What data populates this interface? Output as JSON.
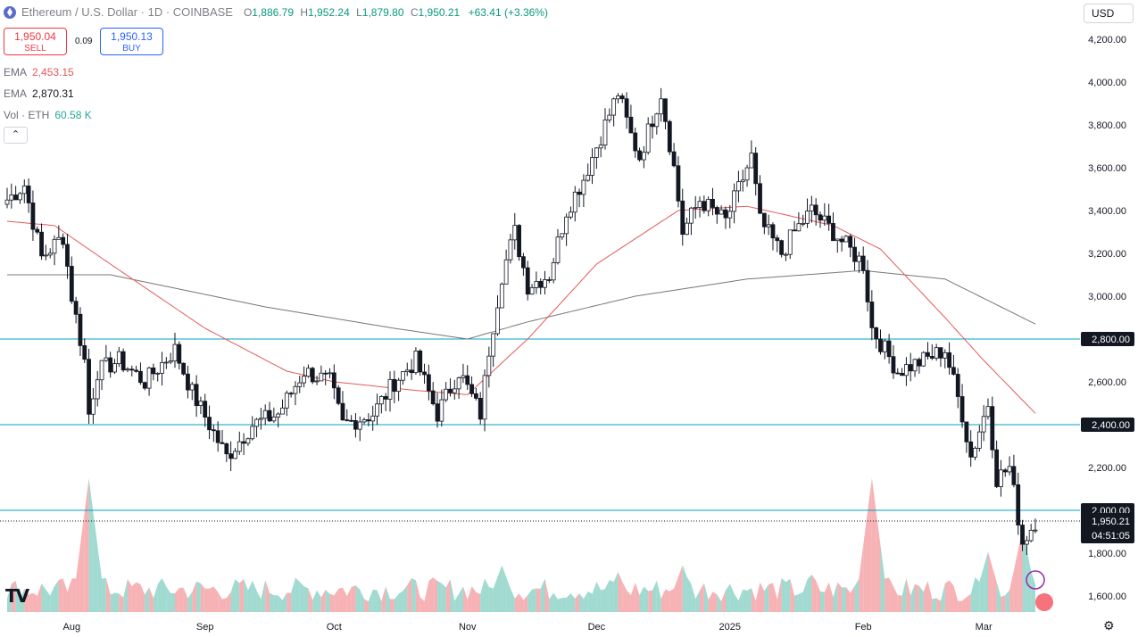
{
  "header": {
    "symbol": "Ethereum / U.S. Dollar · 1D · COINBASE",
    "o_label": "O",
    "o_value": "1,886.79",
    "h_label": "H",
    "h_value": "1,952.24",
    "l_label": "L",
    "l_value": "1,879.80",
    "c_label": "C",
    "c_value": "1,950.21",
    "change": "+63.41 (+3.36%)"
  },
  "trade": {
    "sell_price": "1,950.04",
    "sell_label": "SELL",
    "spread": "0.09",
    "buy_price": "1,950.13",
    "buy_label": "BUY"
  },
  "indicators": [
    {
      "name": "EMA",
      "value": "2,453.15",
      "color": "#e35a5a"
    },
    {
      "name": "EMA",
      "value": "2,870.31",
      "color": "#555555"
    },
    {
      "name": "Vol · ETH",
      "value": "60.58 K",
      "color": "#26a69a"
    }
  ],
  "collapse_icon": "chevron-up-icon",
  "collapse_glyph": "⌃",
  "currency": "USD",
  "tv_logo": "TV",
  "settings_icon": "gear-icon",
  "colors": {
    "up": "#089981",
    "down": "#f23645",
    "ema_fast": "#e35a5a",
    "ema_slow": "#777777",
    "hline": "#00a3c4",
    "vol_up": "#8fd3c8",
    "vol_down": "#f5a4a8",
    "last_label_bg": "#131722",
    "hline_label_bg": "#131722"
  },
  "chart_data": {
    "type": "candlestick",
    "symbol": "ETHUSD",
    "interval": "1D",
    "y_ticks": [
      "4,200.00",
      "4,000.00",
      "3,800.00",
      "3,600.00",
      "3,400.00",
      "3,200.00",
      "3,000.00",
      "2,800.00",
      "2,600.00",
      "2,400.00",
      "2,200.00",
      "2,000.00",
      "1,800.00",
      "1,600.00"
    ],
    "y_tick_values": [
      4200,
      4000,
      3800,
      3600,
      3400,
      3200,
      3000,
      2800,
      2600,
      2400,
      2200,
      2000,
      1800,
      1600
    ],
    "ylim": [
      1520,
      4285
    ],
    "x_ticks": [
      "Aug",
      "Sep",
      "Oct",
      "Nov",
      "Dec",
      "2025",
      "Feb",
      "Mar"
    ],
    "x_tick_dates": [
      "2024-08-01",
      "2024-09-01",
      "2024-10-01",
      "2024-11-01",
      "2024-12-01",
      "2025-01-01",
      "2025-02-01",
      "2025-03-01"
    ],
    "date_range": [
      "2024-07-17",
      "2025-03-13"
    ],
    "horizontal_lines": [
      {
        "value": 2800,
        "label": "2,800.00"
      },
      {
        "value": 2400,
        "label": "2,400.00"
      },
      {
        "value": 2000,
        "label": "2,000.00"
      }
    ],
    "last_price": {
      "value": 1950.21,
      "label": "1,950.21",
      "countdown": "04:51:05"
    },
    "close_anchors": [
      [
        "2024-07-17",
        3450
      ],
      [
        "2024-07-21",
        3520
      ],
      [
        "2024-07-25",
        3180
      ],
      [
        "2024-07-30",
        3280
      ],
      [
        "2024-08-01",
        3000
      ],
      [
        "2024-08-04",
        2700
      ],
      [
        "2024-08-05",
        2450
      ],
      [
        "2024-08-07",
        2650
      ],
      [
        "2024-08-12",
        2700
      ],
      [
        "2024-08-18",
        2600
      ],
      [
        "2024-08-25",
        2750
      ],
      [
        "2024-08-29",
        2550
      ],
      [
        "2024-09-06",
        2250
      ],
      [
        "2024-09-12",
        2400
      ],
      [
        "2024-09-18",
        2450
      ],
      [
        "2024-09-24",
        2650
      ],
      [
        "2024-09-30",
        2600
      ],
      [
        "2024-10-03",
        2400
      ],
      [
        "2024-10-10",
        2450
      ],
      [
        "2024-10-15",
        2600
      ],
      [
        "2024-10-20",
        2700
      ],
      [
        "2024-10-25",
        2450
      ],
      [
        "2024-10-30",
        2650
      ],
      [
        "2024-11-04",
        2450
      ],
      [
        "2024-11-06",
        2750
      ],
      [
        "2024-11-09",
        3100
      ],
      [
        "2024-11-12",
        3300
      ],
      [
        "2024-11-15",
        3050
      ],
      [
        "2024-11-20",
        3100
      ],
      [
        "2024-11-24",
        3400
      ],
      [
        "2024-11-28",
        3550
      ],
      [
        "2024-12-01",
        3700
      ],
      [
        "2024-12-06",
        3950
      ],
      [
        "2024-12-09",
        3750
      ],
      [
        "2024-12-11",
        3650
      ],
      [
        "2024-12-16",
        3950
      ],
      [
        "2024-12-19",
        3600
      ],
      [
        "2024-12-21",
        3300
      ],
      [
        "2024-12-25",
        3450
      ],
      [
        "2024-12-31",
        3350
      ],
      [
        "2025-01-06",
        3650
      ],
      [
        "2025-01-08",
        3350
      ],
      [
        "2025-01-13",
        3200
      ],
      [
        "2025-01-16",
        3300
      ],
      [
        "2025-01-20",
        3400
      ],
      [
        "2025-01-25",
        3300
      ],
      [
        "2025-02-01",
        3150
      ],
      [
        "2025-02-03",
        2850
      ],
      [
        "2025-02-09",
        2650
      ],
      [
        "2025-02-15",
        2700
      ],
      [
        "2025-02-20",
        2750
      ],
      [
        "2025-02-24",
        2450
      ],
      [
        "2025-02-26",
        2250
      ],
      [
        "2025-03-02",
        2500
      ],
      [
        "2025-03-04",
        2150
      ],
      [
        "2025-03-07",
        2200
      ],
      [
        "2025-03-10",
        1850
      ],
      [
        "2025-03-13",
        1950
      ]
    ],
    "ema_fast_anchors": [
      [
        "2024-07-17",
        3350
      ],
      [
        "2024-07-28",
        3330
      ],
      [
        "2024-08-10",
        3150
      ],
      [
        "2024-09-01",
        2850
      ],
      [
        "2024-09-20",
        2650
      ],
      [
        "2024-10-01",
        2600
      ],
      [
        "2024-10-20",
        2560
      ],
      [
        "2024-11-01",
        2540
      ],
      [
        "2024-11-15",
        2800
      ],
      [
        "2024-12-01",
        3150
      ],
      [
        "2024-12-20",
        3400
      ],
      [
        "2025-01-05",
        3420
      ],
      [
        "2025-01-25",
        3330
      ],
      [
        "2025-02-05",
        3220
      ],
      [
        "2025-02-20",
        2900
      ],
      [
        "2025-03-01",
        2700
      ],
      [
        "2025-03-13",
        2453
      ]
    ],
    "ema_slow_anchors": [
      [
        "2024-07-17",
        3100
      ],
      [
        "2024-08-10",
        3100
      ],
      [
        "2024-09-15",
        2950
      ],
      [
        "2024-10-15",
        2850
      ],
      [
        "2024-11-01",
        2800
      ],
      [
        "2024-11-15",
        2880
      ],
      [
        "2024-12-10",
        3000
      ],
      [
        "2025-01-05",
        3080
      ],
      [
        "2025-02-01",
        3120
      ],
      [
        "2025-02-20",
        3080
      ],
      [
        "2025-03-13",
        2870
      ]
    ],
    "volume_spikes": [
      [
        "2024-08-05",
        1.0
      ],
      [
        "2025-02-03",
        1.0
      ],
      [
        "2025-03-10",
        0.62
      ],
      [
        "2025-03-02",
        0.45
      ],
      [
        "2024-11-09",
        0.35
      ],
      [
        "2024-12-06",
        0.3
      ],
      [
        "2024-12-21",
        0.35
      ],
      [
        "2025-01-20",
        0.28
      ]
    ],
    "volume_max_height_units": 1.0
  }
}
